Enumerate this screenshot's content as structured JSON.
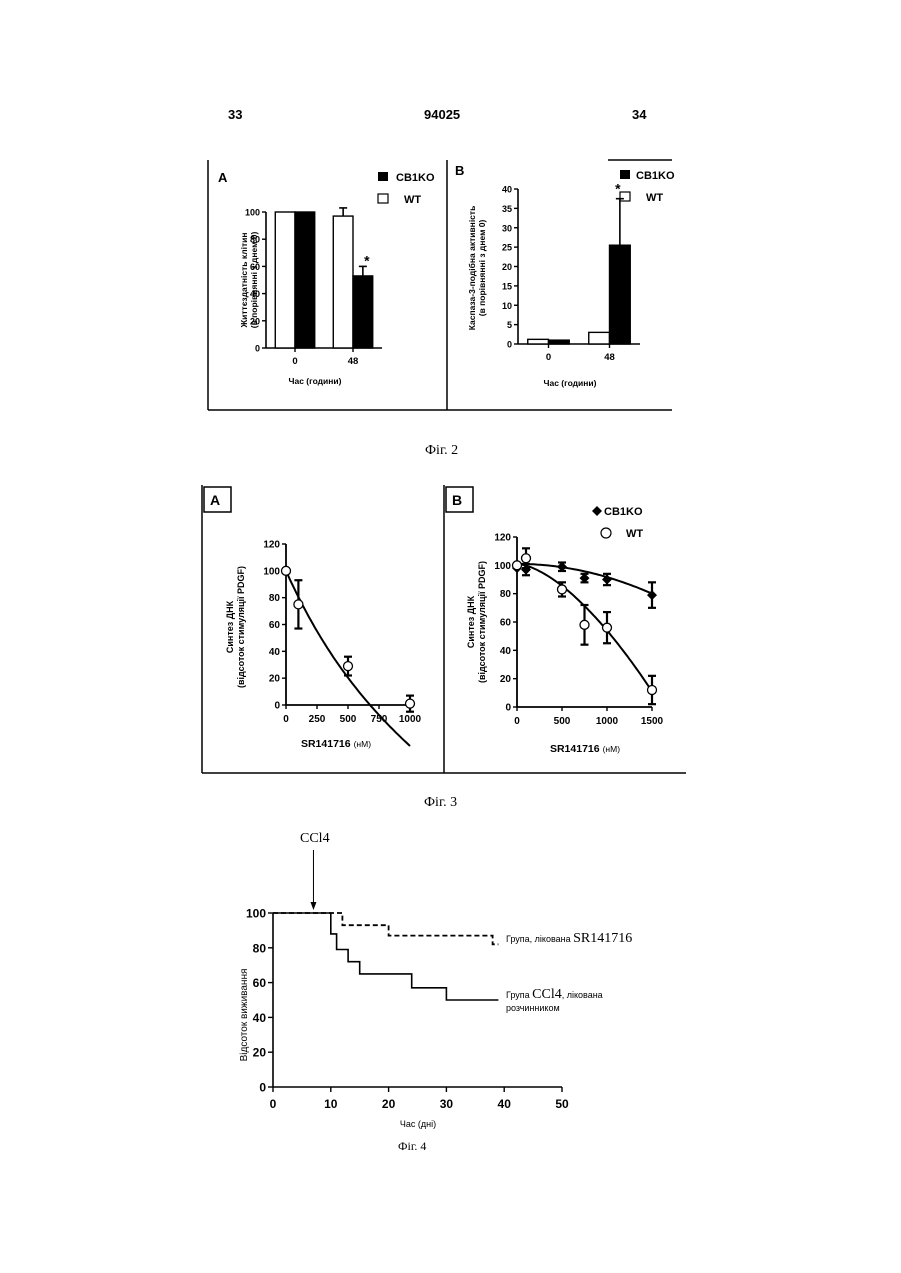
{
  "header": {
    "page_left": "33",
    "patent_number": "94025",
    "page_right": "34"
  },
  "figures": [
    {
      "caption": "Фіг. 2"
    },
    {
      "caption": "Фіг. 3"
    },
    {
      "caption": "Фіг. 4"
    }
  ],
  "chart_data": [
    {
      "id": "fig2A",
      "type": "bar",
      "panel_label": "A",
      "ylabel_line1": "Життєздатність клітин",
      "ylabel_line2": "(в порівнянні з днем 0)",
      "xlabel": "Час (години)",
      "categories": [
        "0",
        "48"
      ],
      "ylim": [
        0,
        100
      ],
      "yticks": [
        "0",
        "20",
        "40",
        "60",
        "80",
        "100"
      ],
      "series": [
        {
          "name": "CB1KO",
          "color": "#000000",
          "values": [
            100,
            53
          ],
          "err": [
            0,
            7
          ]
        },
        {
          "name": "WT",
          "color": "#ffffff",
          "values": [
            100,
            97
          ],
          "err": [
            0,
            6
          ]
        }
      ],
      "annotations": [
        "*"
      ]
    },
    {
      "id": "fig2B",
      "type": "bar",
      "panel_label": "B",
      "ylabel_line1": "Каспаза-3-подібна активність",
      "ylabel_line2": "(в порівнянні з днем 0)",
      "xlabel": "Час (години)",
      "categories": [
        "0",
        "48"
      ],
      "ylim": [
        0,
        40
      ],
      "yticks": [
        "0",
        "5",
        "10",
        "15",
        "20",
        "25",
        "30",
        "35",
        "40"
      ],
      "series": [
        {
          "name": "CB1KO",
          "color": "#000000",
          "values": [
            1,
            25.5
          ],
          "err": [
            0,
            12
          ]
        },
        {
          "name": "WT",
          "color": "#ffffff",
          "values": [
            1.2,
            3
          ],
          "err": [
            0,
            0
          ]
        }
      ],
      "annotations": [
        "*"
      ]
    },
    {
      "id": "fig3A",
      "type": "scatter",
      "panel_label": "A",
      "ylabel_line1": "Синтез ДНК",
      "ylabel_line2": "(відсоток стимуляції PDGF)",
      "xlabel": "SR141716",
      "xlabel_unit": "(нМ)",
      "xlim": [
        0,
        1000
      ],
      "ylim": [
        0,
        120
      ],
      "xticks": [
        "0",
        "250",
        "500",
        "750",
        "1000"
      ],
      "yticks": [
        "0",
        "20",
        "40",
        "60",
        "80",
        "100",
        "120"
      ],
      "series": [
        {
          "marker": "open-circle",
          "points": [
            [
              0,
              100
            ],
            [
              100,
              75
            ],
            [
              500,
              29
            ],
            [
              1000,
              1
            ]
          ],
          "err": [
            0,
            18,
            7,
            6
          ]
        }
      ]
    },
    {
      "id": "fig3B",
      "type": "scatter",
      "panel_label": "B",
      "ylabel_line1": "Синтез ДНК",
      "ylabel_line2": "(відсоток стимуляції PDGF)",
      "xlabel": "SR141716",
      "xlabel_unit": "(нМ)",
      "xlim": [
        0,
        1500
      ],
      "ylim": [
        0,
        120
      ],
      "xticks": [
        "0",
        "500",
        "1000",
        "1500"
      ],
      "yticks": [
        "0",
        "20",
        "40",
        "60",
        "80",
        "100",
        "120"
      ],
      "series": [
        {
          "name": "CB1KO",
          "marker": "filled-diamond",
          "points": [
            [
              0,
              98
            ],
            [
              100,
              97
            ],
            [
              500,
              99
            ],
            [
              750,
              91
            ],
            [
              1000,
              90
            ],
            [
              1500,
              79
            ]
          ],
          "err": [
            0,
            4,
            3,
            3,
            4,
            9
          ]
        },
        {
          "name": "WT",
          "marker": "open-circle",
          "points": [
            [
              0,
              100
            ],
            [
              100,
              105
            ],
            [
              500,
              83
            ],
            [
              750,
              58
            ],
            [
              1000,
              56
            ],
            [
              1500,
              12
            ]
          ],
          "err": [
            0,
            7,
            5,
            14,
            11,
            10
          ]
        }
      ]
    },
    {
      "id": "fig4",
      "type": "line",
      "step": true,
      "ylabel": "Відсоток виживання",
      "xlabel": "Час (дні)",
      "xlim": [
        0,
        50
      ],
      "ylim": [
        0,
        100
      ],
      "xticks": [
        "0",
        "10",
        "20",
        "30",
        "40",
        "50"
      ],
      "yticks": [
        "0",
        "20",
        "40",
        "60",
        "80",
        "100"
      ],
      "arrow_label": "CCl4",
      "arrow_x": 7,
      "series": [
        {
          "name_prefix": "Група, лікована ",
          "name_main": "SR141716",
          "style": "dashed",
          "points": [
            [
              0,
              100
            ],
            [
              12,
              100
            ],
            [
              12,
              93
            ],
            [
              20,
              93
            ],
            [
              20,
              87
            ],
            [
              38,
              87
            ],
            [
              38,
              82
            ],
            [
              39,
              82
            ]
          ]
        },
        {
          "name_prefix": "Група ",
          "name_main": "CCl4",
          "name_suffix": ", лікована",
          "name_line2": "розчинником",
          "style": "solid",
          "points": [
            [
              0,
              100
            ],
            [
              10,
              100
            ],
            [
              10,
              88
            ],
            [
              11,
              88
            ],
            [
              11,
              79
            ],
            [
              13,
              79
            ],
            [
              13,
              72
            ],
            [
              15,
              72
            ],
            [
              15,
              65
            ],
            [
              24,
              65
            ],
            [
              24,
              57
            ],
            [
              30,
              57
            ],
            [
              30,
              50
            ],
            [
              39,
              50
            ]
          ]
        }
      ]
    }
  ]
}
